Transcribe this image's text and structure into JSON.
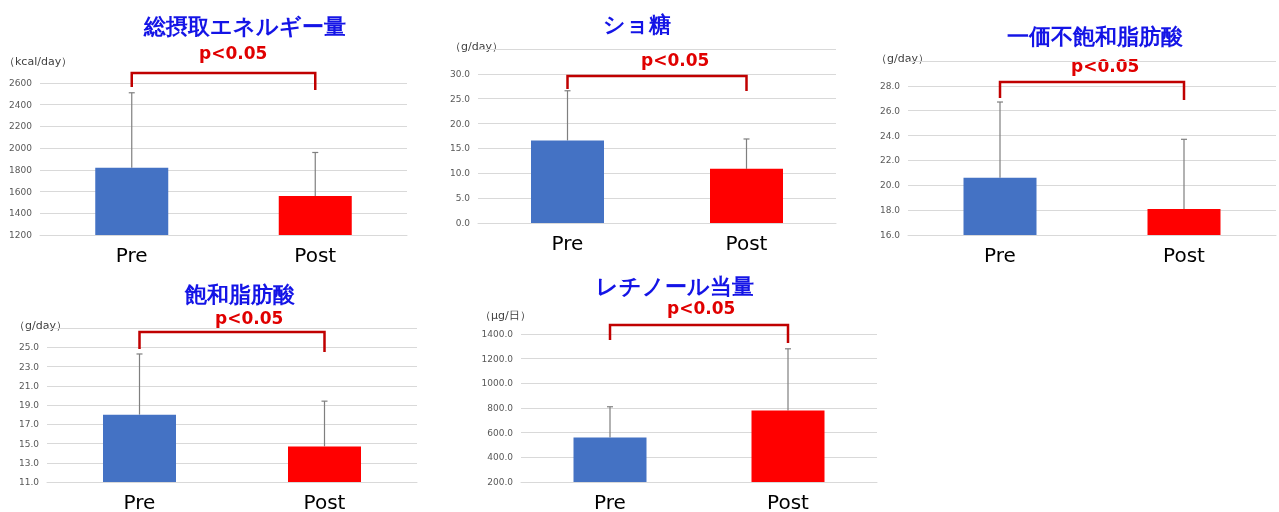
{
  "chart_data": [
    {
      "type": "bar",
      "title": "総摂取エネルギー量",
      "ylabel": "（kcal/day）",
      "categories": [
        "Pre",
        "Post"
      ],
      "values": [
        1820,
        1560
      ],
      "colors": [
        "#4472c4",
        "#ff0000"
      ],
      "errors": [
        690,
        400
      ],
      "ylim": [
        1200,
        2600
      ],
      "yticks": [
        1200,
        1400,
        1600,
        1800,
        2000,
        2200,
        2400,
        2600
      ],
      "grid": "y",
      "annotations": [
        "p<0.05"
      ]
    },
    {
      "type": "bar",
      "title": "ショ糖",
      "ylabel": "（g/day）",
      "categories": [
        "Pre",
        "Post"
      ],
      "values": [
        16.6,
        10.9
      ],
      "colors": [
        "#4472c4",
        "#ff0000"
      ],
      "errors": [
        10.0,
        6.0
      ],
      "ylim": [
        0,
        35
      ],
      "yticks": [
        {
          "value": 0,
          "label": "0.0"
        },
        {
          "value": 5,
          "label": "5.0"
        },
        {
          "value": 10,
          "label": "10.0"
        },
        {
          "value": 15,
          "label": "15.0"
        },
        {
          "value": 20,
          "label": "20.0"
        },
        {
          "value": 25,
          "label": "25.0"
        },
        {
          "value": 30,
          "label": "30.0"
        },
        {
          "value": 35,
          "label": null
        }
      ],
      "grid": "y",
      "annotations": [
        "p<0.05"
      ]
    },
    {
      "type": "bar",
      "title": "一価不飽和脂肪酸",
      "ylabel": "（g/day）",
      "categories": [
        "Pre",
        "Post"
      ],
      "values": [
        20.6,
        18.1
      ],
      "colors": [
        "#4472c4",
        "#ff0000"
      ],
      "errors": [
        6.1,
        5.6
      ],
      "ylim": [
        16,
        30
      ],
      "yticks": [
        {
          "value": 16,
          "label": "16.0"
        },
        {
          "value": 18,
          "label": "18.0"
        },
        {
          "value": 20,
          "label": "20.0"
        },
        {
          "value": 22,
          "label": "22.0"
        },
        {
          "value": 24,
          "label": "24.0"
        },
        {
          "value": 26,
          "label": "26.0"
        },
        {
          "value": 28,
          "label": "28.0"
        },
        {
          "value": 30,
          "label": null
        }
      ],
      "grid": "y",
      "annotations": [
        "p<0.05"
      ]
    },
    {
      "type": "bar",
      "title": "飽和脂肪酸",
      "ylabel": "（g/day）",
      "categories": [
        "Pre",
        "Post"
      ],
      "values": [
        18.0,
        14.7
      ],
      "colors": [
        "#4472c4",
        "#ff0000"
      ],
      "errors": [
        6.3,
        4.7
      ],
      "ylim": [
        11,
        27
      ],
      "yticks": [
        {
          "value": 11,
          "label": "11.0"
        },
        {
          "value": 13,
          "label": "13.0"
        },
        {
          "value": 15,
          "label": "15.0"
        },
        {
          "value": 17,
          "label": "17.0"
        },
        {
          "value": 19,
          "label": "19.0"
        },
        {
          "value": 21,
          "label": "21.0"
        },
        {
          "value": 23,
          "label": "23.0"
        },
        {
          "value": 25,
          "label": "25.0"
        },
        {
          "value": 27,
          "label": null
        }
      ],
      "grid": "y",
      "annotations": [
        "p<0.05"
      ]
    },
    {
      "type": "bar",
      "title": "レチノール当量",
      "ylabel": "（µg/日）",
      "categories": [
        "Pre",
        "Post"
      ],
      "values": [
        560,
        780
      ],
      "colors": [
        "#4472c4",
        "#ff0000"
      ],
      "errors": [
        250,
        500
      ],
      "ylim": [
        200,
        1400
      ],
      "yticks": [
        {
          "value": 200,
          "label": "200.0"
        },
        {
          "value": 400,
          "label": "400.0"
        },
        {
          "value": 600,
          "label": "600.0"
        },
        {
          "value": 800,
          "label": "800.0"
        },
        {
          "value": 1000,
          "label": "1000.0"
        },
        {
          "value": 1200,
          "label": "1200.0"
        },
        {
          "value": 1400,
          "label": "1400.0"
        }
      ],
      "grid": "y",
      "annotations": [
        "p<0.05"
      ]
    }
  ]
}
